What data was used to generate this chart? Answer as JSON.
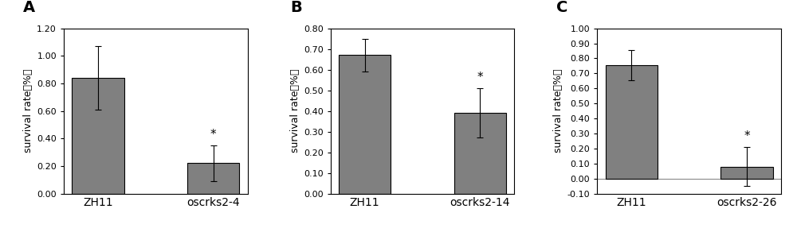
{
  "panels": [
    {
      "label": "A",
      "categories": [
        "ZH11",
        "oscrks2-4"
      ],
      "values": [
        0.84,
        0.22
      ],
      "errors": [
        0.23,
        0.13
      ],
      "ylim": [
        0.0,
        1.2
      ],
      "yticks": [
        0.0,
        0.2,
        0.4,
        0.6,
        0.8,
        1.0,
        1.2
      ],
      "ylabel": "survival rate（%）",
      "star_index": 1
    },
    {
      "label": "B",
      "categories": [
        "ZH11",
        "oscrks2-14"
      ],
      "values": [
        0.67,
        0.39
      ],
      "errors": [
        0.08,
        0.12
      ],
      "ylim": [
        0.0,
        0.8
      ],
      "yticks": [
        0.0,
        0.1,
        0.2,
        0.3,
        0.4,
        0.5,
        0.6,
        0.7,
        0.8
      ],
      "ylabel": "survival rate（%）",
      "star_index": 1
    },
    {
      "label": "C",
      "categories": [
        "ZH11",
        "oscrks2-26"
      ],
      "values": [
        0.755,
        0.08
      ],
      "errors": [
        0.1,
        0.13
      ],
      "ylim": [
        -0.1,
        1.0
      ],
      "yticks": [
        -0.1,
        0.0,
        0.1,
        0.2,
        0.3,
        0.4,
        0.5,
        0.6,
        0.7,
        0.8,
        0.9,
        1.0
      ],
      "ylabel": "survival rate（%）",
      "star_index": 1,
      "hline": 0.0
    }
  ],
  "bar_color": "#808080",
  "bar_edgecolor": "#000000",
  "error_color": "#000000",
  "background_color": "#ffffff",
  "tick_fontsize": 8,
  "ylabel_fontsize": 9,
  "xtick_fontsize": 10,
  "panel_label_fontsize": 14
}
